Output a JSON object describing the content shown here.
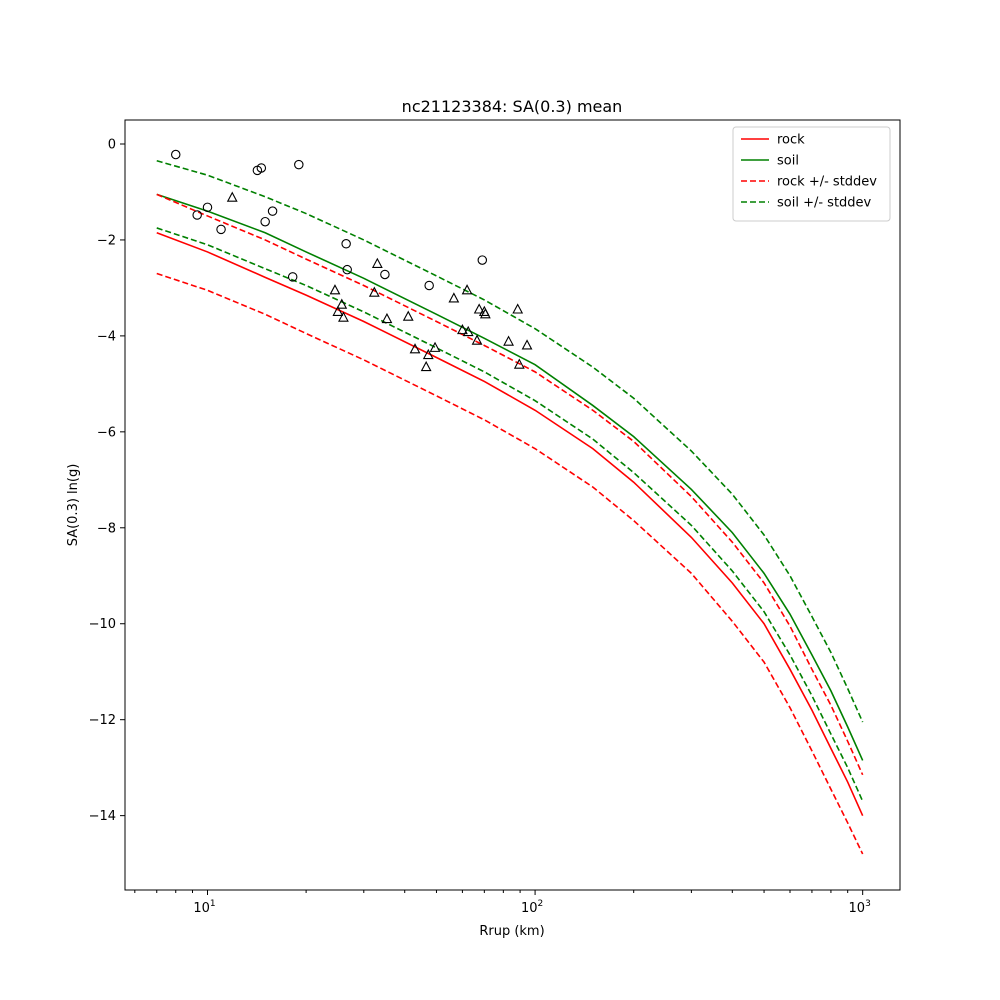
{
  "chart_data": {
    "type": "line",
    "title": "nc21123384: SA(0.3) mean",
    "xlabel": "Rrup (km)",
    "ylabel": "SA(0.3) ln(g)",
    "xscale": "log",
    "xlim": [
      5.6,
      1300
    ],
    "ylim": [
      -15.55,
      0.5
    ],
    "grid": false,
    "legend_position": "top-right",
    "xticks": [
      {
        "value": 10,
        "base": "10",
        "exp": "1"
      },
      {
        "value": 100,
        "base": "10",
        "exp": "2"
      },
      {
        "value": 1000,
        "base": "10",
        "exp": "3"
      }
    ],
    "yticks": [
      {
        "value": 0,
        "label": "0"
      },
      {
        "value": -2,
        "label": "−2"
      },
      {
        "value": -4,
        "label": "−4"
      },
      {
        "value": -6,
        "label": "−6"
      },
      {
        "value": -8,
        "label": "−8"
      },
      {
        "value": -10,
        "label": "−10"
      },
      {
        "value": -12,
        "label": "−12"
      },
      {
        "value": -14,
        "label": "−14"
      }
    ],
    "series": [
      {
        "name": "rock",
        "color": "#ff0000",
        "dash": "solid",
        "x": [
          7,
          10,
          15,
          20,
          30,
          50,
          70,
          100,
          150,
          200,
          300,
          400,
          500,
          600,
          700,
          800,
          900,
          1000
        ],
        "y": [
          -1.85,
          -2.25,
          -2.78,
          -3.15,
          -3.7,
          -4.45,
          -4.95,
          -5.55,
          -6.35,
          -7.05,
          -8.2,
          -9.15,
          -10.0,
          -10.95,
          -11.8,
          -12.6,
          -13.3,
          -14.0
        ]
      },
      {
        "name": "soil",
        "color": "#008000",
        "dash": "solid",
        "x": [
          7,
          10,
          15,
          20,
          30,
          50,
          70,
          100,
          150,
          200,
          300,
          400,
          500,
          600,
          700,
          800,
          900,
          1000
        ],
        "y": [
          -1.05,
          -1.4,
          -1.85,
          -2.25,
          -2.8,
          -3.55,
          -4.05,
          -4.6,
          -5.45,
          -6.1,
          -7.2,
          -8.1,
          -8.95,
          -9.8,
          -10.65,
          -11.4,
          -12.15,
          -12.85
        ]
      },
      {
        "name": "rock +/- stddev",
        "color": "#ff0000",
        "dash": "dashed",
        "x": [
          7,
          10,
          15,
          20,
          30,
          50,
          70,
          100,
          150,
          200,
          300,
          400,
          500,
          600,
          700,
          800,
          900,
          1000
        ],
        "y": [
          -1.05,
          -1.5,
          -2.0,
          -2.4,
          -2.95,
          -3.7,
          -4.2,
          -4.75,
          -5.55,
          -6.2,
          -7.35,
          -8.3,
          -9.15,
          -10.05,
          -10.95,
          -11.7,
          -12.45,
          -13.15
        ]
      },
      {
        "name": "rock +/- stddev",
        "color": "#ff0000",
        "dash": "dashed",
        "legend": false,
        "x": [
          7,
          10,
          15,
          20,
          30,
          50,
          70,
          100,
          150,
          200,
          300,
          400,
          500,
          600,
          700,
          800,
          900,
          1000
        ],
        "y": [
          -2.7,
          -3.05,
          -3.55,
          -3.95,
          -4.5,
          -5.25,
          -5.75,
          -6.35,
          -7.15,
          -7.85,
          -8.95,
          -9.95,
          -10.8,
          -11.75,
          -12.65,
          -13.45,
          -14.15,
          -14.8
        ]
      },
      {
        "name": "soil +/- stddev",
        "color": "#008000",
        "dash": "dashed",
        "x": [
          7,
          10,
          15,
          20,
          30,
          50,
          70,
          100,
          150,
          200,
          300,
          400,
          500,
          600,
          700,
          800,
          900,
          1000
        ],
        "y": [
          -0.35,
          -0.65,
          -1.1,
          -1.45,
          -2.0,
          -2.75,
          -3.25,
          -3.85,
          -4.65,
          -5.3,
          -6.4,
          -7.3,
          -8.15,
          -9.0,
          -9.85,
          -10.6,
          -11.35,
          -12.05
        ]
      },
      {
        "name": "soil +/- stddev",
        "color": "#008000",
        "dash": "dashed",
        "legend": false,
        "x": [
          7,
          10,
          15,
          20,
          30,
          50,
          70,
          100,
          150,
          200,
          300,
          400,
          500,
          600,
          700,
          800,
          900,
          1000
        ],
        "y": [
          -1.75,
          -2.1,
          -2.6,
          -2.95,
          -3.5,
          -4.25,
          -4.75,
          -5.35,
          -6.15,
          -6.85,
          -7.95,
          -8.9,
          -9.75,
          -10.65,
          -11.5,
          -12.3,
          -13.0,
          -13.7
        ]
      }
    ],
    "observations": [
      {
        "marker": "circle",
        "x": [
          8.0,
          9.3,
          10.0,
          11.0,
          14.2,
          14.6,
          15.0,
          15.8,
          18.2,
          19.0,
          26.5,
          26.7,
          34.8,
          47.5,
          69.0
        ],
        "y": [
          -0.22,
          -1.48,
          -1.32,
          -1.78,
          -0.55,
          -0.5,
          -1.62,
          -1.4,
          -2.77,
          -0.43,
          -2.08,
          -2.62,
          -2.72,
          -2.95,
          -2.42
        ]
      },
      {
        "marker": "triangle",
        "x": [
          11.9,
          24.5,
          25.0,
          25.7,
          26.0,
          32.3,
          33.0,
          35.3,
          41.0,
          43.0,
          46.5,
          47.2,
          49.5,
          56.5,
          60.0,
          62.0,
          62.5,
          66.5,
          67.5,
          70.0,
          70.5,
          83.0,
          88.5,
          89.5,
          94.5
        ],
        "y": [
          -1.12,
          -3.05,
          -3.5,
          -3.35,
          -3.62,
          -3.1,
          -2.5,
          -3.65,
          -3.6,
          -4.28,
          -4.65,
          -4.4,
          -4.25,
          -3.22,
          -3.88,
          -3.05,
          -3.92,
          -4.1,
          -3.45,
          -3.5,
          -3.55,
          -4.12,
          -3.45,
          -4.6,
          -4.2
        ]
      }
    ]
  }
}
